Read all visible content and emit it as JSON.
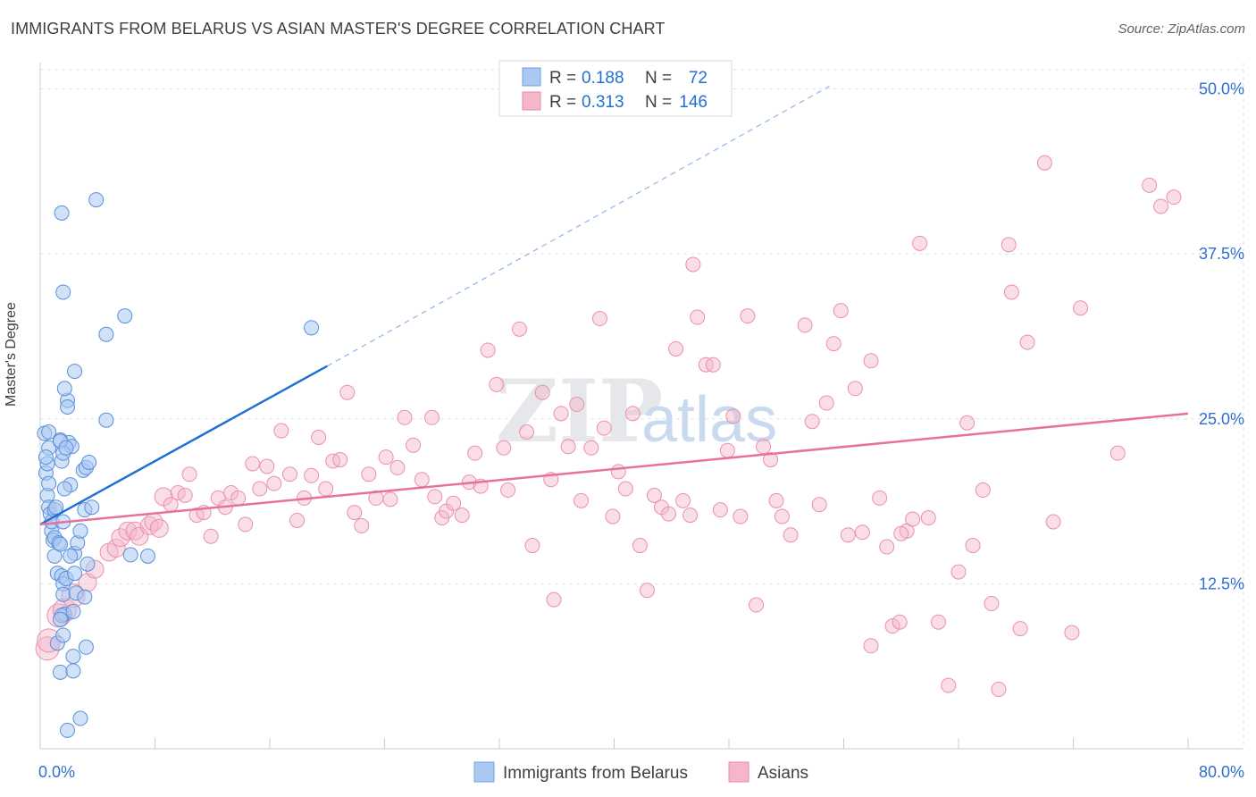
{
  "title": "IMMIGRANTS FROM BELARUS VS ASIAN MASTER'S DEGREE CORRELATION CHART",
  "source": "Source: ZipAtlas.com",
  "colors": {
    "blue": "#1f6fd6",
    "blue_fill": "#aac8f2",
    "pink": "#e8719b",
    "pink_fill": "#f5b6ca",
    "grid": "#dfe3e8",
    "axis_text": "#2f6fd0"
  },
  "legend": {
    "r_label": "R =",
    "n_label": "N =",
    "entries": [
      {
        "r": "0.188",
        "n": "72"
      },
      {
        "r": "0.313",
        "n": "146"
      }
    ]
  },
  "watermark": {
    "zip": "ZIP",
    "atlas": "atlas"
  },
  "chart_data": {
    "type": "scatter",
    "title": "IMMIGRANTS FROM BELARUS VS ASIAN MASTER'S DEGREE CORRELATION CHART",
    "xlabel": "",
    "ylabel": "Master's Degree",
    "xlim": [
      0,
      80
    ],
    "ylim": [
      0,
      52
    ],
    "x_tick_labels": [
      "0.0%",
      "80.0%"
    ],
    "y_ticks": [
      12.5,
      25.0,
      37.5,
      50.0
    ],
    "y_tick_labels": [
      "12.5%",
      "25.0%",
      "37.5%",
      "50.0%"
    ],
    "grid": true,
    "legend_position": "top-center",
    "series": [
      {
        "name": "Immigrants from Belarus",
        "r": 0.188,
        "n": 72,
        "trend": {
          "x": [
            0,
            20
          ],
          "y": [
            17.0,
            29.0
          ],
          "extend_to_x": 55,
          "extend_to_y": 50.2
        },
        "points": [
          [
            0.3,
            23.9
          ],
          [
            0.4,
            20.9
          ],
          [
            0.5,
            19.2
          ],
          [
            0.6,
            18.3
          ],
          [
            0.7,
            17.8
          ],
          [
            0.8,
            16.5
          ],
          [
            0.9,
            15.8
          ],
          [
            1.0,
            16.0
          ],
          [
            0.5,
            21.6
          ],
          [
            0.6,
            22.8
          ],
          [
            0.8,
            17.2
          ],
          [
            1.0,
            18.1
          ],
          [
            1.1,
            18.3
          ],
          [
            1.3,
            15.6
          ],
          [
            1.0,
            14.6
          ],
          [
            1.2,
            13.3
          ],
          [
            1.4,
            15.5
          ],
          [
            1.5,
            13.1
          ],
          [
            1.6,
            12.5
          ],
          [
            1.8,
            12.9
          ],
          [
            1.6,
            11.7
          ],
          [
            1.7,
            10.2
          ],
          [
            1.5,
            10.1
          ],
          [
            1.4,
            9.8
          ],
          [
            1.2,
            8.0
          ],
          [
            1.6,
            8.6
          ],
          [
            1.4,
            5.8
          ],
          [
            1.9,
            1.4
          ],
          [
            2.3,
            7.0
          ],
          [
            2.3,
            5.9
          ],
          [
            2.8,
            2.3
          ],
          [
            2.4,
            13.3
          ],
          [
            2.4,
            14.8
          ],
          [
            2.5,
            11.8
          ],
          [
            2.3,
            10.4
          ],
          [
            2.1,
            14.6
          ],
          [
            2.6,
            15.6
          ],
          [
            2.8,
            16.5
          ],
          [
            3.1,
            18.1
          ],
          [
            3.3,
            14.0
          ],
          [
            3.1,
            11.5
          ],
          [
            3.2,
            7.7
          ],
          [
            3.6,
            18.3
          ],
          [
            3.0,
            21.1
          ],
          [
            3.2,
            21.3
          ],
          [
            3.4,
            21.7
          ],
          [
            2.1,
            20.0
          ],
          [
            2.0,
            23.2
          ],
          [
            2.2,
            22.9
          ],
          [
            2.4,
            28.6
          ],
          [
            1.9,
            26.4
          ],
          [
            1.9,
            25.9
          ],
          [
            1.7,
            27.3
          ],
          [
            1.7,
            19.7
          ],
          [
            1.6,
            17.2
          ],
          [
            1.5,
            21.8
          ],
          [
            1.4,
            23.4
          ],
          [
            1.4,
            23.3
          ],
          [
            1.6,
            22.4
          ],
          [
            1.8,
            22.8
          ],
          [
            0.4,
            22.1
          ],
          [
            0.6,
            24.0
          ],
          [
            4.6,
            31.4
          ],
          [
            4.6,
            24.9
          ],
          [
            5.9,
            32.8
          ],
          [
            6.3,
            14.7
          ],
          [
            7.5,
            14.6
          ],
          [
            1.6,
            34.6
          ],
          [
            1.5,
            40.6
          ],
          [
            3.9,
            41.6
          ],
          [
            18.9,
            31.9
          ],
          [
            0.6,
            20.1
          ]
        ]
      },
      {
        "name": "Asians",
        "r": 0.313,
        "n": 146,
        "trend": {
          "x": [
            0,
            80
          ],
          "y": [
            17.0,
            25.4
          ]
        },
        "points": [
          [
            0.5,
            7.6
          ],
          [
            0.6,
            8.2
          ],
          [
            1.3,
            10.1
          ],
          [
            1.7,
            10.5
          ],
          [
            2.3,
            11.6
          ],
          [
            3.3,
            12.6
          ],
          [
            3.8,
            13.6
          ],
          [
            4.8,
            14.9
          ],
          [
            5.3,
            15.2
          ],
          [
            5.6,
            16.0
          ],
          [
            6.1,
            16.5
          ],
          [
            6.6,
            16.5
          ],
          [
            6.9,
            16.1
          ],
          [
            7.6,
            16.9
          ],
          [
            7.9,
            17.2
          ],
          [
            8.3,
            16.7
          ],
          [
            8.6,
            19.1
          ],
          [
            9.1,
            18.5
          ],
          [
            9.6,
            19.4
          ],
          [
            10.1,
            19.2
          ],
          [
            10.4,
            20.8
          ],
          [
            10.9,
            17.7
          ],
          [
            11.4,
            17.9
          ],
          [
            11.9,
            16.1
          ],
          [
            12.4,
            19.0
          ],
          [
            12.9,
            18.3
          ],
          [
            13.3,
            19.4
          ],
          [
            13.8,
            19.0
          ],
          [
            14.3,
            17.0
          ],
          [
            14.8,
            21.6
          ],
          [
            15.3,
            19.7
          ],
          [
            15.8,
            21.4
          ],
          [
            16.3,
            20.1
          ],
          [
            16.8,
            24.1
          ],
          [
            17.4,
            20.8
          ],
          [
            17.9,
            17.3
          ],
          [
            18.4,
            19.0
          ],
          [
            18.9,
            20.7
          ],
          [
            19.4,
            23.6
          ],
          [
            19.9,
            19.7
          ],
          [
            20.4,
            21.8
          ],
          [
            20.9,
            21.9
          ],
          [
            21.4,
            27.0
          ],
          [
            21.9,
            17.9
          ],
          [
            22.4,
            16.9
          ],
          [
            22.9,
            20.8
          ],
          [
            23.4,
            19.0
          ],
          [
            24.1,
            22.1
          ],
          [
            24.4,
            18.9
          ],
          [
            24.9,
            21.3
          ],
          [
            25.4,
            25.1
          ],
          [
            26.0,
            23.0
          ],
          [
            26.6,
            20.4
          ],
          [
            27.3,
            25.1
          ],
          [
            27.5,
            19.1
          ],
          [
            28.0,
            17.5
          ],
          [
            28.3,
            18.0
          ],
          [
            28.8,
            18.6
          ],
          [
            29.4,
            17.7
          ],
          [
            29.9,
            20.2
          ],
          [
            30.3,
            22.4
          ],
          [
            30.7,
            19.9
          ],
          [
            31.2,
            30.2
          ],
          [
            31.8,
            27.6
          ],
          [
            32.3,
            22.8
          ],
          [
            32.6,
            19.6
          ],
          [
            33.4,
            31.8
          ],
          [
            33.9,
            24.0
          ],
          [
            34.3,
            15.4
          ],
          [
            35.0,
            27.0
          ],
          [
            35.6,
            20.4
          ],
          [
            35.8,
            11.3
          ],
          [
            36.3,
            25.4
          ],
          [
            36.8,
            22.9
          ],
          [
            37.4,
            26.1
          ],
          [
            37.7,
            18.8
          ],
          [
            38.4,
            22.8
          ],
          [
            39.0,
            32.6
          ],
          [
            39.3,
            24.3
          ],
          [
            39.9,
            17.6
          ],
          [
            40.3,
            21.0
          ],
          [
            40.8,
            19.7
          ],
          [
            41.3,
            25.4
          ],
          [
            41.8,
            15.4
          ],
          [
            42.3,
            12.0
          ],
          [
            42.8,
            19.2
          ],
          [
            43.3,
            18.3
          ],
          [
            43.8,
            17.8
          ],
          [
            44.3,
            30.3
          ],
          [
            44.8,
            18.8
          ],
          [
            45.3,
            17.7
          ],
          [
            45.5,
            36.7
          ],
          [
            45.8,
            32.7
          ],
          [
            46.4,
            29.1
          ],
          [
            46.9,
            29.1
          ],
          [
            47.4,
            18.1
          ],
          [
            47.9,
            22.6
          ],
          [
            48.3,
            25.2
          ],
          [
            48.8,
            17.6
          ],
          [
            49.3,
            32.8
          ],
          [
            49.9,
            10.9
          ],
          [
            50.4,
            22.9
          ],
          [
            50.9,
            21.9
          ],
          [
            51.3,
            18.8
          ],
          [
            51.7,
            17.6
          ],
          [
            52.3,
            16.2
          ],
          [
            53.3,
            32.1
          ],
          [
            53.8,
            24.8
          ],
          [
            54.3,
            18.5
          ],
          [
            54.8,
            26.2
          ],
          [
            55.3,
            30.7
          ],
          [
            55.8,
            33.2
          ],
          [
            56.3,
            16.2
          ],
          [
            56.8,
            27.3
          ],
          [
            57.3,
            16.4
          ],
          [
            57.9,
            29.4
          ],
          [
            58.5,
            19.0
          ],
          [
            59.0,
            15.3
          ],
          [
            59.4,
            9.3
          ],
          [
            59.9,
            9.6
          ],
          [
            60.4,
            16.5
          ],
          [
            60.8,
            17.4
          ],
          [
            61.3,
            38.3
          ],
          [
            61.9,
            17.5
          ],
          [
            62.6,
            9.6
          ],
          [
            63.3,
            4.8
          ],
          [
            64.0,
            13.4
          ],
          [
            64.6,
            24.7
          ],
          [
            65.0,
            15.4
          ],
          [
            65.7,
            19.6
          ],
          [
            66.3,
            11.0
          ],
          [
            66.8,
            4.5
          ],
          [
            67.5,
            38.2
          ],
          [
            67.7,
            34.6
          ],
          [
            68.3,
            9.1
          ],
          [
            68.8,
            30.8
          ],
          [
            70.0,
            44.4
          ],
          [
            70.6,
            17.2
          ],
          [
            71.9,
            8.8
          ],
          [
            72.5,
            33.4
          ],
          [
            75.1,
            22.4
          ],
          [
            77.3,
            42.7
          ],
          [
            78.1,
            41.1
          ],
          [
            79.0,
            41.8
          ],
          [
            57.9,
            7.8
          ],
          [
            60.0,
            16.3
          ]
        ]
      }
    ]
  }
}
